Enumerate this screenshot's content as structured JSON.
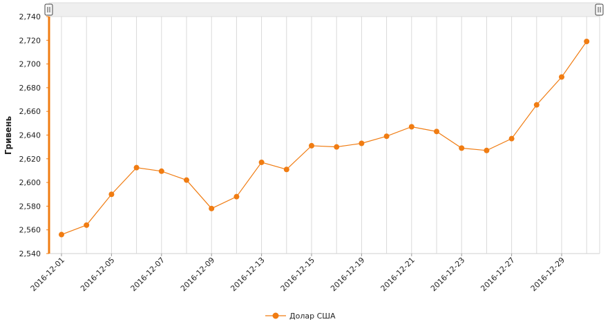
{
  "chart_data": {
    "type": "line",
    "title": "",
    "xlabel": "",
    "ylabel": "Гривень",
    "ylim": [
      2540,
      2740
    ],
    "yticks": [
      2540,
      2560,
      2580,
      2600,
      2620,
      2640,
      2660,
      2680,
      2700,
      2720,
      2740
    ],
    "ytick_labels": [
      "2,540",
      "2,560",
      "2,580",
      "2,600",
      "2,620",
      "2,640",
      "2,660",
      "2,680",
      "2,700",
      "2,720",
      "2,740"
    ],
    "x": [
      "2016-12-01",
      "2016-12-03",
      "2016-12-05",
      "2016-12-06",
      "2016-12-07",
      "2016-12-08",
      "2016-12-09",
      "2016-12-10",
      "2016-12-13",
      "2016-12-14",
      "2016-12-15",
      "2016-12-17",
      "2016-12-19",
      "2016-12-20",
      "2016-12-21",
      "2016-12-22",
      "2016-12-23",
      "2016-12-24",
      "2016-12-27",
      "2016-12-28",
      "2016-12-29",
      "2016-12-30"
    ],
    "xtick_labels": [
      "2016-12-01",
      "2016-12-05",
      "2016-12-07",
      "2016-12-09",
      "2016-12-13",
      "2016-12-15",
      "2016-12-19",
      "2016-12-21",
      "2016-12-23",
      "2016-12-27",
      "2016-12-29"
    ],
    "series": [
      {
        "name": "Долар США",
        "color": "#f07c12",
        "values": [
          2556,
          2564,
          2590,
          2612.5,
          2609.5,
          2602,
          2578,
          2588,
          2617,
          2611,
          2631,
          2630,
          2633,
          2639,
          2647,
          2643,
          2629,
          2627,
          2637,
          2665.5,
          2689,
          2719
        ]
      }
    ],
    "grid": true,
    "legend_position": "bottom"
  },
  "legend": {
    "label": "Долар США"
  },
  "colors": {
    "series": "#f07c12",
    "grid": "#d9d9d9",
    "navigator": "#eeeeee"
  }
}
